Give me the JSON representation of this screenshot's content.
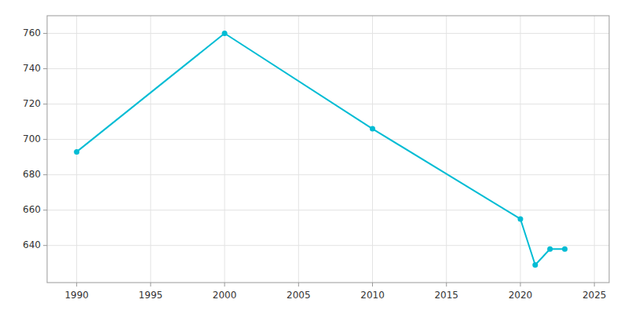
{
  "chart_data": {
    "type": "line",
    "x": [
      1990,
      2000,
      2010,
      2020,
      2021,
      2022,
      2023
    ],
    "values": [
      693,
      760,
      706,
      655,
      629,
      638,
      638
    ],
    "color": "#00BCD4",
    "marker": "circle",
    "xlim": [
      1988,
      2026
    ],
    "ylim": [
      619,
      770
    ],
    "xticks": [
      1990,
      1995,
      2000,
      2005,
      2010,
      2015,
      2020,
      2025
    ],
    "yticks": [
      640,
      660,
      680,
      700,
      720,
      740,
      760
    ],
    "grid": true
  }
}
